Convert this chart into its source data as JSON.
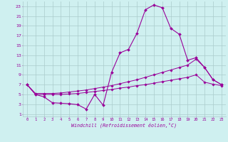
{
  "xlabel": "Windchill (Refroidissement éolien,°C)",
  "background_color": "#cff0f0",
  "grid_color": "#aacccc",
  "line_color": "#990099",
  "x_ticks": [
    0,
    1,
    2,
    3,
    4,
    5,
    6,
    7,
    8,
    9,
    10,
    11,
    12,
    13,
    14,
    15,
    16,
    17,
    18,
    19,
    20,
    21,
    22,
    23
  ],
  "y_ticks": [
    1,
    3,
    5,
    7,
    9,
    11,
    13,
    15,
    17,
    19,
    21,
    23
  ],
  "xlim": [
    -0.5,
    23.5
  ],
  "ylim": [
    0.5,
    24
  ],
  "line1_x": [
    0,
    1,
    2,
    3,
    4,
    5,
    6,
    7,
    8,
    9,
    10,
    11,
    12,
    13,
    14,
    15,
    16,
    17,
    18,
    19,
    20,
    21,
    22,
    23
  ],
  "line1_y": [
    7,
    5,
    4.5,
    3.3,
    3.2,
    3.1,
    2.9,
    2.0,
    5.0,
    2.8,
    9.5,
    13.5,
    14.2,
    17.5,
    22.3,
    23.3,
    22.7,
    18.5,
    17.3,
    12.0,
    12.5,
    10.5,
    8.0,
    7.0
  ],
  "line2_x": [
    0,
    1,
    2,
    3,
    4,
    5,
    6,
    7,
    8,
    9,
    10,
    11,
    12,
    13,
    14,
    15,
    16,
    17,
    18,
    19,
    20,
    21,
    22,
    23
  ],
  "line2_y": [
    7.0,
    5.2,
    5.2,
    5.2,
    5.3,
    5.5,
    5.7,
    5.9,
    6.2,
    6.5,
    6.8,
    7.2,
    7.6,
    8.0,
    8.5,
    9.0,
    9.5,
    10.0,
    10.5,
    11.0,
    12.2,
    10.5,
    8.0,
    7.0
  ],
  "line3_x": [
    0,
    1,
    2,
    3,
    4,
    5,
    6,
    7,
    8,
    9,
    10,
    11,
    12,
    13,
    14,
    15,
    16,
    17,
    18,
    19,
    20,
    21,
    22,
    23
  ],
  "line3_y": [
    7.0,
    5.0,
    5.0,
    5.0,
    5.0,
    5.1,
    5.2,
    5.4,
    5.6,
    5.8,
    6.0,
    6.3,
    6.5,
    6.8,
    7.0,
    7.3,
    7.6,
    7.9,
    8.2,
    8.5,
    9.0,
    7.5,
    7.1,
    6.8
  ]
}
